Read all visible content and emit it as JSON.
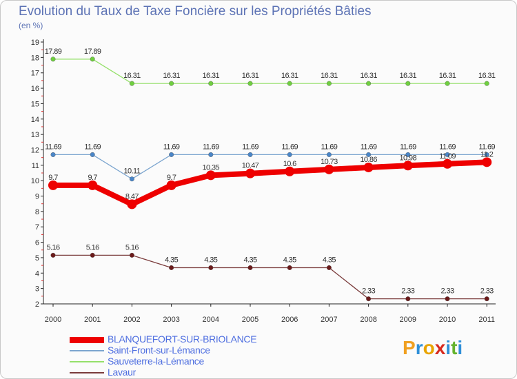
{
  "title": "Evolution du Taux de Taxe Foncière sur les Propriétés Bâties",
  "unit": "(en %)",
  "brand": {
    "text": "Proxiti",
    "letters": [
      {
        "ch": "P",
        "color": "#f0a020"
      },
      {
        "ch": "r",
        "color": "#2e8fd8"
      },
      {
        "ch": "o",
        "color": "#e9a400"
      },
      {
        "ch": "x",
        "color": "#d72b1f"
      },
      {
        "ch": "i",
        "color": "#2e8fd8"
      },
      {
        "ch": "t",
        "color": "#65b32e"
      },
      {
        "ch": "i",
        "color": "#2e8fd8"
      }
    ]
  },
  "chart_data": {
    "type": "line",
    "title": "Evolution du Taux de Taxe Foncière sur les Propriétés Bâties",
    "ylabel": "(en %)",
    "xlabel": "",
    "categories": [
      "2000",
      "2001",
      "2002",
      "2003",
      "2004",
      "2005",
      "2006",
      "2007",
      "2008",
      "2009",
      "2010",
      "2011"
    ],
    "ylim": [
      2,
      19
    ],
    "yticks": [
      "2",
      "3",
      "4",
      "5",
      "6",
      "7",
      "8",
      "9",
      "10",
      "11",
      "12",
      "13",
      "14",
      "15",
      "16",
      "17",
      "18",
      "19"
    ],
    "grid": false,
    "legend_position": "bottom-left",
    "series": [
      {
        "name": "BLANQUEFORT-SUR-BRIOLANCE",
        "color": "#ee0000",
        "marker": "#ee0000",
        "style": "thick",
        "values": [
          9.7,
          9.7,
          8.47,
          9.7,
          10.35,
          10.47,
          10.6,
          10.73,
          10.86,
          10.98,
          11.09,
          11.2
        ],
        "labels": [
          "9.7",
          "9.7",
          "8.47",
          "9.7",
          "10.35",
          "10.47",
          "10.6",
          "10.73",
          "10.86",
          "10.98",
          "11.09",
          "11.2"
        ]
      },
      {
        "name": "Saint-Front-sur-Lémance",
        "color": "#7ca5cf",
        "marker": "#4a86c8",
        "style": "thin",
        "values": [
          11.69,
          11.69,
          10.11,
          11.69,
          11.69,
          11.69,
          11.69,
          11.69,
          11.69,
          11.69,
          11.69,
          11.69
        ],
        "labels": [
          "11.69",
          "11.69",
          "10.11",
          "11.69",
          "11.69",
          "11.69",
          "11.69",
          "11.69",
          "11.69",
          "11.69",
          "11.69",
          "11.69"
        ]
      },
      {
        "name": "Sauveterre-la-Lémance",
        "color": "#95e06a",
        "marker": "#6fcf3f",
        "style": "thin",
        "values": [
          17.89,
          17.89,
          16.31,
          16.31,
          16.31,
          16.31,
          16.31,
          16.31,
          16.31,
          16.31,
          16.31,
          16.31
        ],
        "labels": [
          "17.89",
          "17.89",
          "16.31",
          "16.31",
          "16.31",
          "16.31",
          "16.31",
          "16.31",
          "16.31",
          "16.31",
          "16.31",
          "16.31"
        ]
      },
      {
        "name": "Lavaur",
        "color": "#7a3b3b",
        "marker": "#6b1a1a",
        "style": "thin",
        "values": [
          5.16,
          5.16,
          5.16,
          4.35,
          4.35,
          4.35,
          4.35,
          4.35,
          2.33,
          2.33,
          2.33,
          2.33
        ],
        "labels": [
          "5.16",
          "5.16",
          "5.16",
          "4.35",
          "4.35",
          "4.35",
          "4.35",
          "4.35",
          "2.33",
          "2.33",
          "2.33",
          "2.33"
        ]
      }
    ]
  }
}
